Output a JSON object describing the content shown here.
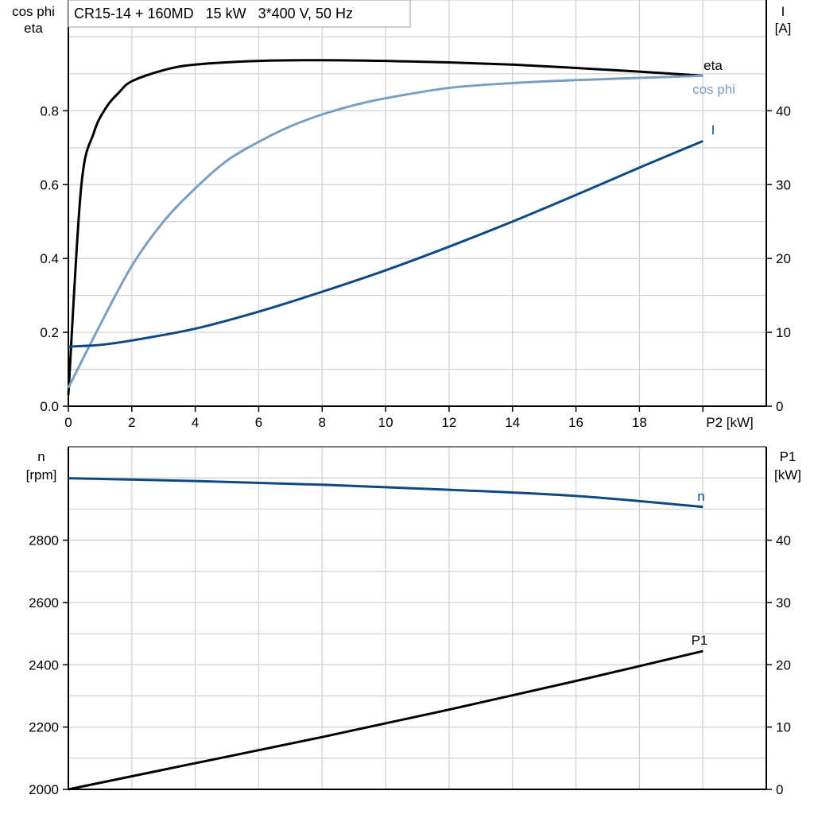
{
  "chart_data": [
    {
      "type": "line",
      "title": "CR15-14 + 160MD   15 kW   3*400 V, 50 Hz",
      "xlabel": "P2 [kW]",
      "ylabel_left": [
        "cos phi",
        "eta"
      ],
      "ylabel_right": [
        "I",
        "[A]"
      ],
      "xlim": [
        0,
        22
      ],
      "ylim_left": [
        0,
        1.1
      ],
      "ylim_right": [
        0,
        55
      ],
      "x_ticks": [
        "0",
        "2",
        "4",
        "6",
        "8",
        "10",
        "12",
        "14",
        "16",
        "18"
      ],
      "y_ticks_left": [
        "0.0",
        "0.2",
        "0.4",
        "0.6",
        "0.8"
      ],
      "y_ticks_right": [
        "0",
        "10",
        "20",
        "30",
        "40"
      ],
      "grid": true,
      "series": [
        {
          "name": "eta",
          "axis": "left",
          "color": "#000000",
          "x": [
            0,
            0.4,
            0.8,
            1.2,
            1.6,
            2,
            3,
            4,
            6,
            8,
            10,
            12,
            14,
            16,
            18,
            20
          ],
          "y": [
            0.03,
            0.59,
            0.74,
            0.81,
            0.85,
            0.88,
            0.91,
            0.925,
            0.935,
            0.937,
            0.935,
            0.931,
            0.925,
            0.916,
            0.906,
            0.895
          ]
        },
        {
          "name": "cos phi",
          "axis": "left",
          "color": "#7a9fc1",
          "x": [
            0,
            1,
            2,
            3,
            4,
            5,
            6,
            7,
            8,
            9,
            10,
            12,
            14,
            16,
            18,
            20
          ],
          "y": [
            0.05,
            0.22,
            0.38,
            0.5,
            0.59,
            0.665,
            0.716,
            0.758,
            0.79,
            0.815,
            0.834,
            0.862,
            0.875,
            0.883,
            0.889,
            0.895
          ]
        },
        {
          "name": "I",
          "axis": "right",
          "color": "#0d4a85",
          "x": [
            0,
            1,
            2,
            4,
            6,
            8,
            10,
            12,
            14,
            16,
            18,
            20
          ],
          "y": [
            8.06,
            8.3,
            8.9,
            10.5,
            12.8,
            15.5,
            18.4,
            21.6,
            25.0,
            28.6,
            32.3,
            35.9
          ]
        }
      ]
    },
    {
      "type": "line",
      "xlim": [
        0,
        22
      ],
      "ylabel_left": [
        "n",
        "[rpm]"
      ],
      "ylabel_right": [
        "P1",
        "[kW]"
      ],
      "ylim_left": [
        2000,
        3100
      ],
      "ylim_right": [
        0,
        55
      ],
      "y_ticks_left": [
        "2000",
        "2200",
        "2400",
        "2600",
        "2800"
      ],
      "y_ticks_right": [
        "0",
        "10",
        "20",
        "30",
        "40"
      ],
      "grid": true,
      "series": [
        {
          "name": "n",
          "axis": "left",
          "color": "#0d4a85",
          "x": [
            0,
            4,
            8,
            12,
            16,
            20
          ],
          "y": [
            2999,
            2990,
            2978,
            2962,
            2942,
            2907
          ]
        },
        {
          "name": "P1",
          "axis": "right",
          "color": "#000000",
          "x": [
            0,
            4,
            8,
            12,
            16,
            20
          ],
          "y": [
            0,
            4.2,
            8.4,
            12.8,
            17.4,
            22.2
          ]
        }
      ]
    }
  ]
}
